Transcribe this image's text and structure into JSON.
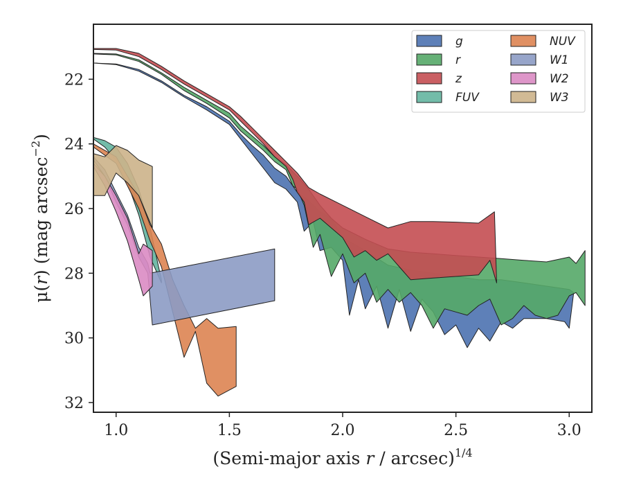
{
  "chart_data": {
    "type": "area",
    "title": "",
    "xlabel_parts": {
      "pre": "(Semi-major axis ",
      "var": "r",
      "post": " / arcsec)",
      "sup": "1/4"
    },
    "ylabel_parts": {
      "pre": "μ(",
      "var": "r",
      "post": ") (mag arcsec",
      "sup": "−2",
      "end": ")"
    },
    "xlim": [
      0.9,
      3.1
    ],
    "ylim": [
      32.3,
      20.3
    ],
    "y_inverted": true,
    "grid": false,
    "legend_position": "top-right",
    "xticks": [
      "1.0",
      "1.5",
      "2.0",
      "2.5",
      "3.0"
    ],
    "yticks": [
      "22",
      "24",
      "26",
      "28",
      "30",
      "32"
    ],
    "series": [
      {
        "name": "g",
        "color": "#4c72b0",
        "upper": [
          [
            0.9,
            21.5
          ],
          [
            1.0,
            21.53
          ],
          [
            1.1,
            21.7
          ],
          [
            1.2,
            22.05
          ],
          [
            1.3,
            22.5
          ],
          [
            1.4,
            22.85
          ],
          [
            1.5,
            23.3
          ],
          [
            1.55,
            23.7
          ],
          [
            1.6,
            24.05
          ],
          [
            1.65,
            24.35
          ],
          [
            1.7,
            24.75
          ],
          [
            1.75,
            25.0
          ],
          [
            1.8,
            25.5
          ],
          [
            1.85,
            25.75
          ],
          [
            1.9,
            26.1
          ],
          [
            1.95,
            26.3
          ],
          [
            2.0,
            26.9
          ],
          [
            2.05,
            27.1
          ],
          [
            2.1,
            27.3
          ],
          [
            2.2,
            27.75
          ],
          [
            2.3,
            27.9
          ],
          [
            2.4,
            28.0
          ],
          [
            2.5,
            28.1
          ],
          [
            2.6,
            28.2
          ],
          [
            2.7,
            28.2
          ],
          [
            2.8,
            28.3
          ],
          [
            2.9,
            28.4
          ],
          [
            3.0,
            28.5
          ]
        ],
        "lower": [
          [
            0.9,
            21.5
          ],
          [
            1.0,
            21.55
          ],
          [
            1.1,
            21.75
          ],
          [
            1.2,
            22.1
          ],
          [
            1.3,
            22.55
          ],
          [
            1.4,
            22.95
          ],
          [
            1.5,
            23.4
          ],
          [
            1.55,
            23.85
          ],
          [
            1.6,
            24.3
          ],
          [
            1.65,
            24.75
          ],
          [
            1.7,
            25.2
          ],
          [
            1.75,
            25.4
          ],
          [
            1.8,
            25.8
          ],
          [
            1.83,
            26.7
          ],
          [
            1.87,
            26.4
          ],
          [
            1.9,
            27.3
          ],
          [
            1.95,
            27.2
          ],
          [
            2.0,
            27.6
          ],
          [
            2.03,
            29.3
          ],
          [
            2.07,
            28.2
          ],
          [
            2.1,
            29.1
          ],
          [
            2.15,
            28.4
          ],
          [
            2.2,
            29.7
          ],
          [
            2.25,
            28.5
          ],
          [
            2.3,
            29.8
          ],
          [
            2.35,
            28.8
          ],
          [
            2.4,
            29.2
          ],
          [
            2.45,
            29.9
          ],
          [
            2.5,
            29.6
          ],
          [
            2.55,
            30.3
          ],
          [
            2.6,
            29.7
          ],
          [
            2.65,
            30.1
          ],
          [
            2.7,
            29.5
          ],
          [
            2.75,
            29.7
          ],
          [
            2.8,
            29.4
          ],
          [
            2.9,
            29.4
          ],
          [
            2.98,
            29.5
          ],
          [
            3.0,
            29.7
          ],
          [
            3.02,
            28.6
          ]
        ]
      },
      {
        "name": "r",
        "color": "#55a868",
        "upper": [
          [
            0.9,
            21.2
          ],
          [
            1.0,
            21.22
          ],
          [
            1.1,
            21.4
          ],
          [
            1.2,
            21.8
          ],
          [
            1.3,
            22.25
          ],
          [
            1.4,
            22.65
          ],
          [
            1.5,
            23.05
          ],
          [
            1.55,
            23.45
          ],
          [
            1.6,
            23.75
          ],
          [
            1.65,
            24.05
          ],
          [
            1.7,
            24.4
          ],
          [
            1.75,
            24.65
          ],
          [
            1.8,
            25.0
          ],
          [
            1.85,
            25.4
          ],
          [
            1.9,
            25.9
          ],
          [
            1.95,
            26.3
          ],
          [
            2.0,
            26.6
          ],
          [
            2.1,
            26.95
          ],
          [
            2.2,
            27.25
          ],
          [
            2.3,
            27.35
          ],
          [
            2.4,
            27.4
          ],
          [
            2.5,
            27.45
          ],
          [
            2.6,
            27.5
          ],
          [
            2.7,
            27.55
          ],
          [
            2.8,
            27.6
          ],
          [
            2.9,
            27.65
          ],
          [
            3.0,
            27.5
          ],
          [
            3.03,
            27.7
          ],
          [
            3.07,
            27.3
          ]
        ],
        "lower": [
          [
            0.9,
            21.22
          ],
          [
            1.0,
            21.25
          ],
          [
            1.1,
            21.45
          ],
          [
            1.2,
            21.85
          ],
          [
            1.3,
            22.35
          ],
          [
            1.4,
            22.75
          ],
          [
            1.5,
            23.2
          ],
          [
            1.55,
            23.6
          ],
          [
            1.6,
            23.9
          ],
          [
            1.65,
            24.2
          ],
          [
            1.7,
            24.55
          ],
          [
            1.75,
            24.8
          ],
          [
            1.78,
            25.3
          ],
          [
            1.8,
            25.4
          ],
          [
            1.83,
            25.9
          ],
          [
            1.87,
            27.2
          ],
          [
            1.9,
            26.8
          ],
          [
            1.95,
            28.1
          ],
          [
            2.0,
            27.4
          ],
          [
            2.05,
            28.3
          ],
          [
            2.1,
            28.0
          ],
          [
            2.15,
            28.9
          ],
          [
            2.2,
            28.5
          ],
          [
            2.25,
            28.9
          ],
          [
            2.3,
            28.6
          ],
          [
            2.35,
            29.0
          ],
          [
            2.4,
            29.7
          ],
          [
            2.45,
            29.1
          ],
          [
            2.5,
            29.2
          ],
          [
            2.55,
            29.3
          ],
          [
            2.6,
            29.0
          ],
          [
            2.65,
            28.8
          ],
          [
            2.7,
            29.6
          ],
          [
            2.75,
            29.4
          ],
          [
            2.8,
            29.0
          ],
          [
            2.85,
            29.3
          ],
          [
            2.9,
            29.4
          ],
          [
            2.95,
            29.3
          ],
          [
            3.0,
            28.7
          ],
          [
            3.03,
            28.6
          ],
          [
            3.07,
            29.0
          ]
        ]
      },
      {
        "name": "z",
        "color": "#c44e52",
        "upper": [
          [
            0.9,
            21.05
          ],
          [
            1.0,
            21.05
          ],
          [
            1.1,
            21.2
          ],
          [
            1.2,
            21.6
          ],
          [
            1.3,
            22.05
          ],
          [
            1.4,
            22.45
          ],
          [
            1.5,
            22.85
          ],
          [
            1.55,
            23.15
          ],
          [
            1.6,
            23.5
          ],
          [
            1.65,
            23.85
          ],
          [
            1.7,
            24.2
          ],
          [
            1.75,
            24.55
          ],
          [
            1.8,
            24.9
          ],
          [
            1.85,
            25.35
          ],
          [
            1.9,
            25.55
          ],
          [
            2.0,
            25.9
          ],
          [
            2.1,
            26.25
          ],
          [
            2.2,
            26.6
          ],
          [
            2.3,
            26.4
          ],
          [
            2.4,
            26.4
          ],
          [
            2.5,
            26.42
          ],
          [
            2.6,
            26.45
          ],
          [
            2.67,
            26.1
          ],
          [
            2.68,
            28.3
          ]
        ],
        "lower": [
          [
            0.9,
            21.08
          ],
          [
            1.0,
            21.1
          ],
          [
            1.1,
            21.3
          ],
          [
            1.2,
            21.7
          ],
          [
            1.3,
            22.15
          ],
          [
            1.4,
            22.55
          ],
          [
            1.5,
            22.95
          ],
          [
            1.55,
            23.3
          ],
          [
            1.6,
            23.65
          ],
          [
            1.65,
            24.0
          ],
          [
            1.7,
            24.4
          ],
          [
            1.75,
            24.7
          ],
          [
            1.78,
            25.1
          ],
          [
            1.8,
            25.5
          ],
          [
            1.83,
            25.8
          ],
          [
            1.85,
            26.5
          ],
          [
            1.9,
            26.3
          ],
          [
            1.95,
            26.6
          ],
          [
            2.0,
            26.9
          ],
          [
            2.05,
            27.5
          ],
          [
            2.1,
            27.3
          ],
          [
            2.15,
            27.6
          ],
          [
            2.2,
            27.4
          ],
          [
            2.25,
            27.8
          ],
          [
            2.3,
            28.2
          ],
          [
            2.4,
            28.15
          ],
          [
            2.5,
            28.1
          ],
          [
            2.6,
            28.05
          ],
          [
            2.65,
            27.6
          ]
        ]
      },
      {
        "name": "FUV",
        "color": "#64b5a0",
        "upper": [
          [
            0.9,
            23.8
          ],
          [
            0.95,
            23.9
          ],
          [
            1.0,
            24.1
          ],
          [
            1.05,
            24.6
          ],
          [
            1.1,
            25.4
          ],
          [
            1.15,
            26.6
          ],
          [
            1.2,
            28.2
          ]
        ],
        "lower": [
          [
            0.9,
            23.85
          ],
          [
            0.95,
            24.1
          ],
          [
            1.0,
            24.5
          ],
          [
            1.05,
            25.2
          ],
          [
            1.1,
            26.2
          ],
          [
            1.15,
            27.5
          ],
          [
            1.2,
            28.3
          ]
        ]
      },
      {
        "name": "NUV",
        "color": "#dd8452",
        "upper": [
          [
            0.9,
            24.0
          ],
          [
            1.0,
            24.4
          ],
          [
            1.05,
            25.0
          ],
          [
            1.1,
            25.6
          ],
          [
            1.15,
            26.5
          ],
          [
            1.2,
            27.1
          ],
          [
            1.25,
            28.2
          ],
          [
            1.3,
            29.0
          ],
          [
            1.35,
            29.7
          ],
          [
            1.4,
            29.4
          ],
          [
            1.45,
            29.7
          ],
          [
            1.53,
            29.65
          ]
        ],
        "lower": [
          [
            0.9,
            24.1
          ],
          [
            1.0,
            24.6
          ],
          [
            1.05,
            25.3
          ],
          [
            1.1,
            26.0
          ],
          [
            1.15,
            27.0
          ],
          [
            1.2,
            27.8
          ],
          [
            1.25,
            29.2
          ],
          [
            1.3,
            30.6
          ],
          [
            1.35,
            29.8
          ],
          [
            1.4,
            31.4
          ],
          [
            1.45,
            31.8
          ],
          [
            1.53,
            31.5
          ]
        ]
      },
      {
        "name": "W1",
        "color": "#8c9bc4",
        "upper": [
          [
            0.9,
            24.4
          ],
          [
            0.95,
            24.8
          ],
          [
            1.0,
            25.5
          ],
          [
            1.05,
            26.2
          ],
          [
            1.1,
            27.2
          ],
          [
            1.14,
            27.7
          ],
          [
            1.15,
            28.0
          ],
          [
            1.7,
            27.25
          ]
        ],
        "lower": [
          [
            0.9,
            24.5
          ],
          [
            0.95,
            25.0
          ],
          [
            1.0,
            25.8
          ],
          [
            1.05,
            26.5
          ],
          [
            1.1,
            27.5
          ],
          [
            1.14,
            28.0
          ],
          [
            1.16,
            29.6
          ],
          [
            1.7,
            28.85
          ]
        ]
      },
      {
        "name": "W2",
        "color": "#da8bc3",
        "upper": [
          [
            0.9,
            24.6
          ],
          [
            0.95,
            25.0
          ],
          [
            1.0,
            25.6
          ],
          [
            1.05,
            26.3
          ],
          [
            1.1,
            27.4
          ],
          [
            1.12,
            27.1
          ],
          [
            1.16,
            27.3
          ]
        ],
        "lower": [
          [
            0.9,
            24.7
          ],
          [
            0.95,
            25.3
          ],
          [
            1.0,
            26.1
          ],
          [
            1.05,
            27.0
          ],
          [
            1.1,
            28.2
          ],
          [
            1.12,
            28.7
          ],
          [
            1.16,
            28.4
          ]
        ]
      },
      {
        "name": "W3",
        "color": "#ccb389",
        "upper": [
          [
            0.9,
            24.3
          ],
          [
            0.95,
            24.4
          ],
          [
            1.0,
            24.05
          ],
          [
            1.05,
            24.2
          ],
          [
            1.1,
            24.5
          ],
          [
            1.16,
            24.7
          ],
          [
            1.16,
            26.6
          ]
        ],
        "lower": [
          [
            0.9,
            25.6
          ],
          [
            0.95,
            25.6
          ],
          [
            1.0,
            24.9
          ],
          [
            1.05,
            25.2
          ],
          [
            1.1,
            25.6
          ],
          [
            1.16,
            26.6
          ]
        ]
      }
    ]
  }
}
